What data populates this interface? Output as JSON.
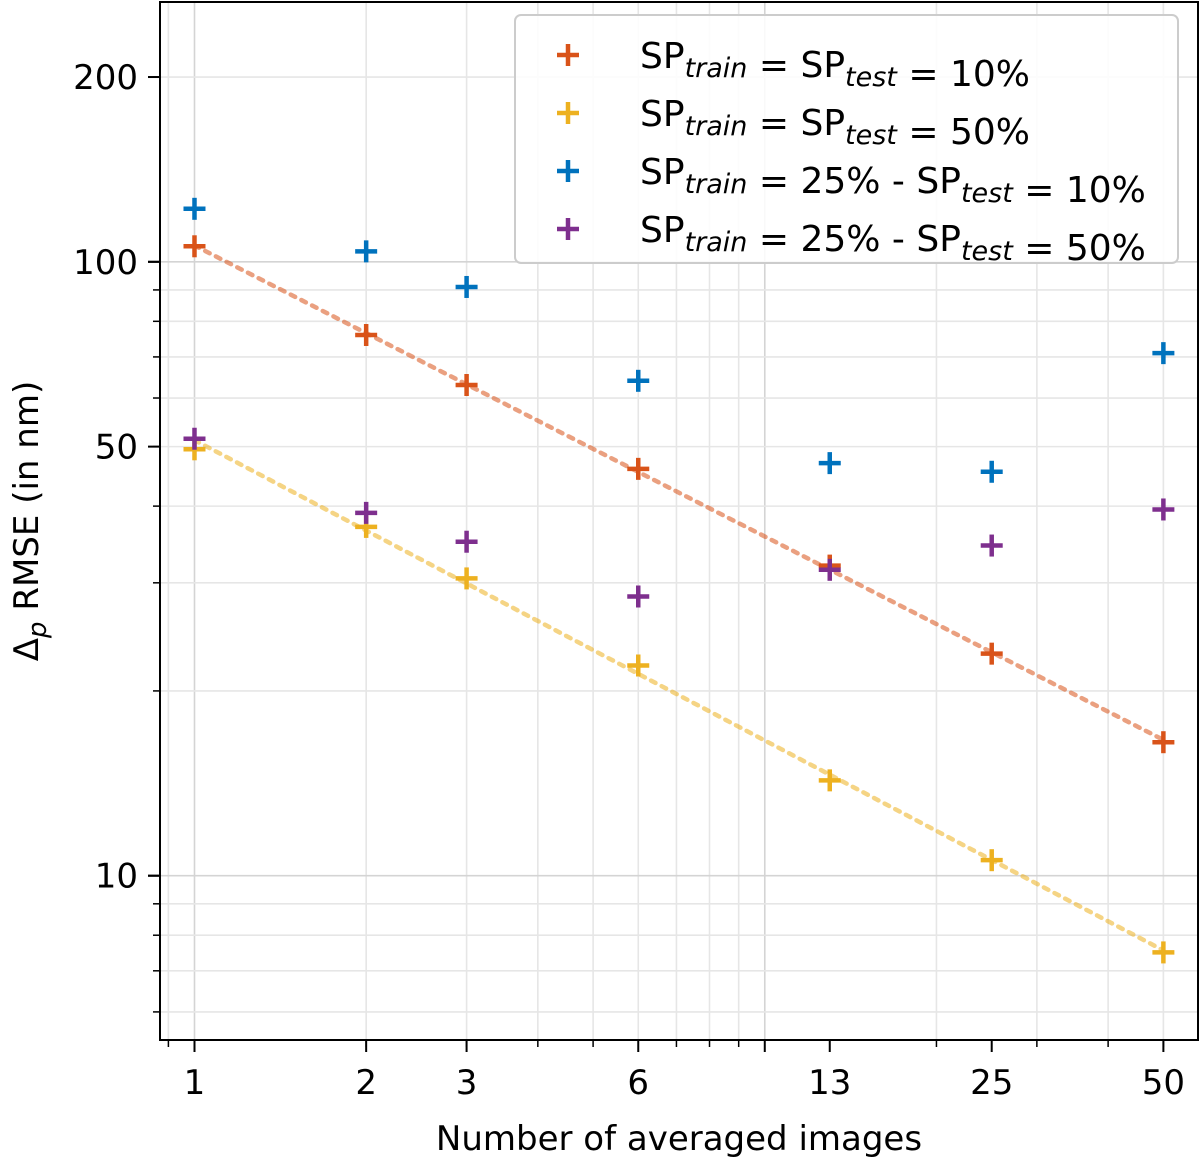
{
  "chart_data": {
    "type": "scatter",
    "xscale": "log",
    "yscale": "log",
    "xlabel": "Number of averaged images",
    "ylabel_parts": {
      "delta": "Δ",
      "sub": "p",
      "rest": " RMSE (in nm)"
    },
    "x": [
      1,
      2,
      3,
      6,
      13,
      25,
      50
    ],
    "x_tick_labels": [
      "1",
      "2",
      "3",
      "6",
      "13",
      "25",
      "50"
    ],
    "xlim": [
      0.87,
      57.5
    ],
    "ylim": [
      5.4,
      265
    ],
    "y_major_ticks": [
      10,
      50,
      100,
      200
    ],
    "y_tick_labels": [
      "10",
      "50",
      "100",
      "200"
    ],
    "grid": true,
    "legend_position": "top-right",
    "series": [
      {
        "name": "SPtrain = SPtest = 10%",
        "legend_parts": [
          [
            "SP",
            ""
          ],
          [
            "train",
            "sub"
          ],
          [
            " = SP",
            ""
          ],
          [
            "test",
            "sub"
          ],
          [
            " = 10%",
            ""
          ]
        ],
        "color": "#d95319",
        "values": [
          106,
          76,
          63,
          46,
          32,
          23,
          16.5
        ],
        "fit_line": true
      },
      {
        "name": "SPtrain = SPtest = 50%",
        "legend_parts": [
          [
            "SP",
            ""
          ],
          [
            "train",
            "sub"
          ],
          [
            " = SP",
            ""
          ],
          [
            "test",
            "sub"
          ],
          [
            " = 50%",
            ""
          ]
        ],
        "color": "#edb120",
        "values": [
          49.5,
          37,
          30.5,
          22,
          14.3,
          10.6,
          7.5
        ],
        "fit_line": true
      },
      {
        "name": "SPtrain = 25% - SPtest = 10%",
        "legend_parts": [
          [
            "SP",
            ""
          ],
          [
            "train",
            "sub"
          ],
          [
            " = 25% - SP",
            ""
          ],
          [
            "test",
            "sub"
          ],
          [
            " = 10%",
            ""
          ]
        ],
        "color": "#0072bd",
        "values": [
          122,
          104,
          91,
          64,
          47,
          45.5,
          71
        ],
        "fit_line": false
      },
      {
        "name": "SPtrain = 25% - SPtest = 50%",
        "legend_parts": [
          [
            "SP",
            ""
          ],
          [
            "train",
            "sub"
          ],
          [
            " = 25% - SP",
            ""
          ],
          [
            "test",
            "sub"
          ],
          [
            " = 50%",
            ""
          ]
        ],
        "color": "#7e2f8e",
        "values": [
          51.5,
          39,
          35,
          28.5,
          31.5,
          34.5,
          39.5
        ],
        "fit_line": false
      }
    ]
  }
}
